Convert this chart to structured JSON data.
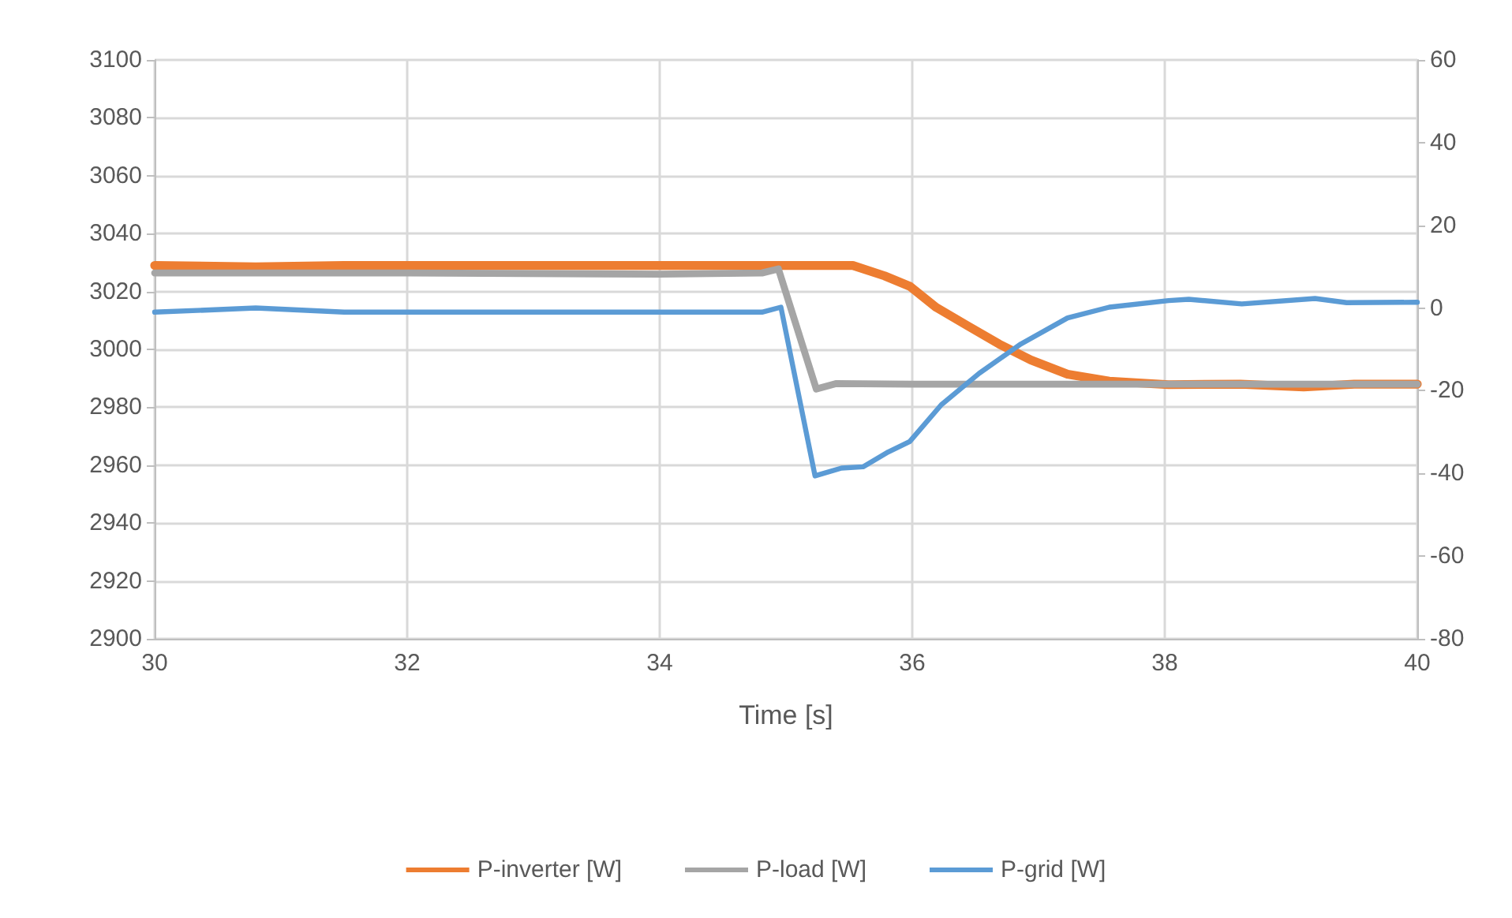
{
  "chart_data": {
    "type": "line",
    "xlabel": "Time [s]",
    "xlim": [
      30,
      40
    ],
    "xticks": [
      30,
      32,
      34,
      36,
      38,
      40
    ],
    "ylim": [
      2900,
      3100
    ],
    "yticks": [
      2900,
      2920,
      2940,
      2960,
      2980,
      3000,
      3020,
      3040,
      3060,
      3080,
      3100
    ],
    "y2lim": [
      -80,
      60
    ],
    "y2ticks": [
      -80,
      -60,
      -40,
      -20,
      0,
      20,
      40,
      60
    ],
    "grid": true,
    "legend": "bottom",
    "marker": "none",
    "line_style": "solid",
    "series": [
      {
        "name": "P-inverter [W]",
        "color": "#ed7d31",
        "x": [
          30,
          30.8,
          31.5,
          33,
          34,
          34.9,
          35.53,
          35.78,
          35.98,
          36.19,
          36.44,
          36.69,
          36.94,
          37.23,
          37.56,
          38.03,
          38.6,
          39.1,
          39.5,
          40
        ],
        "values": [
          3029,
          3028.5,
          3029,
          3029,
          3029,
          3029,
          3029,
          3025.4,
          3021.8,
          3014.5,
          3008.1,
          3001.8,
          2996.3,
          2991.4,
          2989,
          2987.8,
          2988,
          2987,
          2988,
          2988
        ]
      },
      {
        "name": "P-load [W]",
        "color": "#a5a5a5",
        "x": [
          30,
          32,
          34,
          34.81,
          34.94,
          35.24,
          35.4,
          36,
          37,
          38,
          39,
          40
        ],
        "values": [
          3026.4,
          3026.4,
          3026,
          3026.4,
          3027.8,
          2986.3,
          2988.2,
          2988,
          2988,
          2988,
          2988,
          2988
        ]
      },
      {
        "name": "P-grid [W]",
        "color": "#5b9bd5",
        "axis": "y2",
        "x": [
          30,
          30.8,
          31.5,
          32.5,
          33.5,
          34.5,
          34.81,
          34.96,
          35.23,
          35.44,
          35.61,
          35.81,
          35.98,
          36.23,
          36.53,
          36.86,
          37.23,
          37.56,
          38.03,
          38.19,
          38.61,
          39.19,
          39.44,
          40
        ],
        "values": [
          -1,
          0,
          -1,
          -1,
          -1,
          -1,
          -1,
          0.2,
          -40.6,
          -38.7,
          -38.4,
          -34.8,
          -32.3,
          -23.4,
          -15.8,
          -8.7,
          -2.4,
          0.2,
          1.8,
          2.1,
          1,
          2.3,
          1.3,
          1.4
        ]
      }
    ]
  }
}
